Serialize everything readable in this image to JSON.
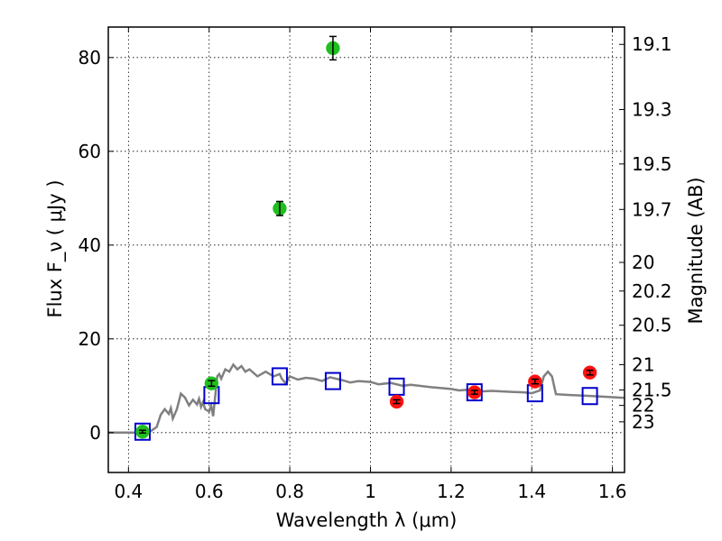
{
  "chart_data": {
    "type": "scatter",
    "xlabel": "Wavelength  λ (μm)",
    "ylabel_left": "Flux  F_ν  ( μJy )",
    "ylabel_right": "Magnitude (AB)",
    "xlim": [
      0.35,
      1.63
    ],
    "ylim": [
      -8.5,
      86.5
    ],
    "grid": true,
    "x_ticks": [
      {
        "value": 0.4,
        "label": "0.4"
      },
      {
        "value": 0.6,
        "label": "0.6"
      },
      {
        "value": 0.8,
        "label": "0.8"
      },
      {
        "value": 1.0,
        "label": "1"
      },
      {
        "value": 1.2,
        "label": "1.2"
      },
      {
        "value": 1.4,
        "label": "1.4"
      },
      {
        "value": 1.6,
        "label": "1.6"
      }
    ],
    "y_ticks": [
      {
        "value": 0,
        "label": "0"
      },
      {
        "value": 20,
        "label": "20"
      },
      {
        "value": 40,
        "label": "40"
      },
      {
        "value": 60,
        "label": "60"
      },
      {
        "value": 80,
        "label": "80"
      }
    ],
    "right_ticks": [
      {
        "flux": 82.8,
        "label": "19.1"
      },
      {
        "flux": 68.9,
        "label": "19.3"
      },
      {
        "flux": 57.3,
        "label": "19.5"
      },
      {
        "flux": 47.6,
        "label": "19.7"
      },
      {
        "flux": 36.3,
        "label": "20"
      },
      {
        "flux": 30.2,
        "label": "20.2"
      },
      {
        "flux": 22.9,
        "label": "20.5"
      },
      {
        "flux": 14.5,
        "label": "21"
      },
      {
        "flux": 9.1,
        "label": "21.5"
      },
      {
        "flux": 5.8,
        "label": "22"
      },
      {
        "flux": 2.3,
        "label": "23"
      }
    ],
    "series": [
      {
        "marker": "circle",
        "color": "#1fbf1f",
        "points": [
          {
            "x": 0.435,
            "y": 0.2,
            "err": 0.3
          },
          {
            "x": 0.606,
            "y": 10.5,
            "err": 0.6
          },
          {
            "x": 0.775,
            "y": 47.8,
            "err": 1.5
          },
          {
            "x": 0.907,
            "y": 82.0,
            "err": 2.5
          }
        ]
      },
      {
        "marker": "circle",
        "color": "#ff1010",
        "points": [
          {
            "x": 1.065,
            "y": 6.6,
            "err": 0.4
          },
          {
            "x": 1.258,
            "y": 8.6,
            "err": 0.4
          },
          {
            "x": 1.408,
            "y": 10.9,
            "err": 0.5
          },
          {
            "x": 1.544,
            "y": 12.8,
            "err": 0.5
          }
        ]
      },
      {
        "marker": "open-square",
        "color": "#0000cc",
        "points": [
          {
            "x": 0.435,
            "y": 0.2
          },
          {
            "x": 0.606,
            "y": 8.0
          },
          {
            "x": 0.775,
            "y": 12.0
          },
          {
            "x": 0.907,
            "y": 11.0
          },
          {
            "x": 1.065,
            "y": 9.8
          },
          {
            "x": 1.258,
            "y": 8.6
          },
          {
            "x": 1.408,
            "y": 8.4
          },
          {
            "x": 1.544,
            "y": 7.8
          }
        ]
      },
      {
        "marker": "line",
        "color": "#808080",
        "x": [
          0.35,
          0.44,
          0.455,
          0.47,
          0.48,
          0.49,
          0.5,
          0.505,
          0.51,
          0.52,
          0.53,
          0.54,
          0.55,
          0.56,
          0.57,
          0.575,
          0.58,
          0.585,
          0.59,
          0.6,
          0.605,
          0.61,
          0.62,
          0.625,
          0.63,
          0.64,
          0.65,
          0.66,
          0.67,
          0.68,
          0.69,
          0.7,
          0.72,
          0.74,
          0.76,
          0.775,
          0.78,
          0.79,
          0.8,
          0.82,
          0.84,
          0.86,
          0.88,
          0.9,
          0.93,
          0.95,
          0.97,
          1.0,
          1.02,
          1.05,
          1.08,
          1.1,
          1.15,
          1.2,
          1.22,
          1.25,
          1.28,
          1.3,
          1.35,
          1.38,
          1.4,
          1.42,
          1.43,
          1.44,
          1.45,
          1.46,
          1.5,
          1.55,
          1.63
        ],
        "y": [
          0,
          0,
          0.3,
          1.2,
          3.8,
          5.0,
          4.0,
          5.2,
          3.0,
          5.0,
          8.3,
          7.5,
          5.8,
          7.0,
          6.0,
          7.2,
          5.5,
          6.5,
          5.0,
          4.5,
          5.8,
          3.5,
          12.0,
          12.5,
          11.5,
          13.5,
          13.0,
          14.5,
          13.5,
          14.2,
          13.0,
          13.5,
          12.0,
          13.0,
          12.0,
          12.5,
          11.5,
          10.5,
          12.0,
          11.3,
          11.7,
          11.5,
          11.0,
          11.8,
          11.2,
          10.7,
          11.0,
          10.8,
          10.3,
          10.6,
          10.0,
          10.2,
          9.7,
          9.3,
          9.0,
          9.2,
          8.8,
          8.9,
          8.7,
          8.6,
          8.4,
          9.0,
          12.0,
          13.0,
          12.0,
          8.2,
          8.0,
          7.8,
          7.4
        ]
      }
    ]
  }
}
